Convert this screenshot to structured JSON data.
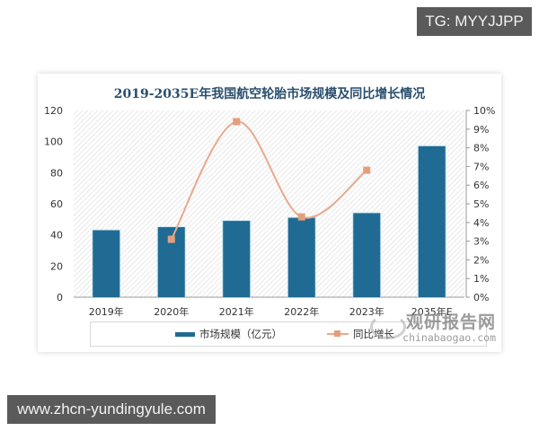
{
  "badges": {
    "top_right": "TG: MYYJJPP",
    "bottom_left": "www.zhcn-yundingyule.com"
  },
  "watermark": {
    "cn": "观研报告网",
    "en": "chinabaogao.com"
  },
  "colors": {
    "bar": "#1f6b93",
    "line": "#e8a98e",
    "marker": "#e39f7c",
    "title": "#2a4f6e",
    "badge_bg": "#5a5a5a"
  },
  "chart_data": {
    "type": "bar",
    "title": "2019-2035E年我国航空轮胎市场规模及同比增长情况",
    "categories": [
      "2019年",
      "2020年",
      "2021年",
      "2022年",
      "2023年",
      "2035年E"
    ],
    "series": [
      {
        "name": "市场规模（亿元）",
        "type": "bar",
        "axis": "left",
        "values": [
          43,
          45,
          49,
          51,
          54,
          97
        ]
      },
      {
        "name": "同比增长",
        "type": "line",
        "axis": "right",
        "values": [
          null,
          3.1,
          9.4,
          4.3,
          6.8,
          null
        ],
        "unit": "%"
      }
    ],
    "xlabel": "",
    "ylabel": "",
    "ylim": [
      0,
      120
    ],
    "y_ticks": [
      "0",
      "20",
      "40",
      "60",
      "80",
      "100",
      "120"
    ],
    "y2lim": [
      0,
      10
    ],
    "y2_ticks": [
      "0%",
      "1%",
      "2%",
      "3%",
      "4%",
      "5%",
      "6%",
      "7%",
      "8%",
      "9%",
      "10%"
    ],
    "legend_position": "bottom",
    "grid": false,
    "background": "diagonal-hatch"
  }
}
